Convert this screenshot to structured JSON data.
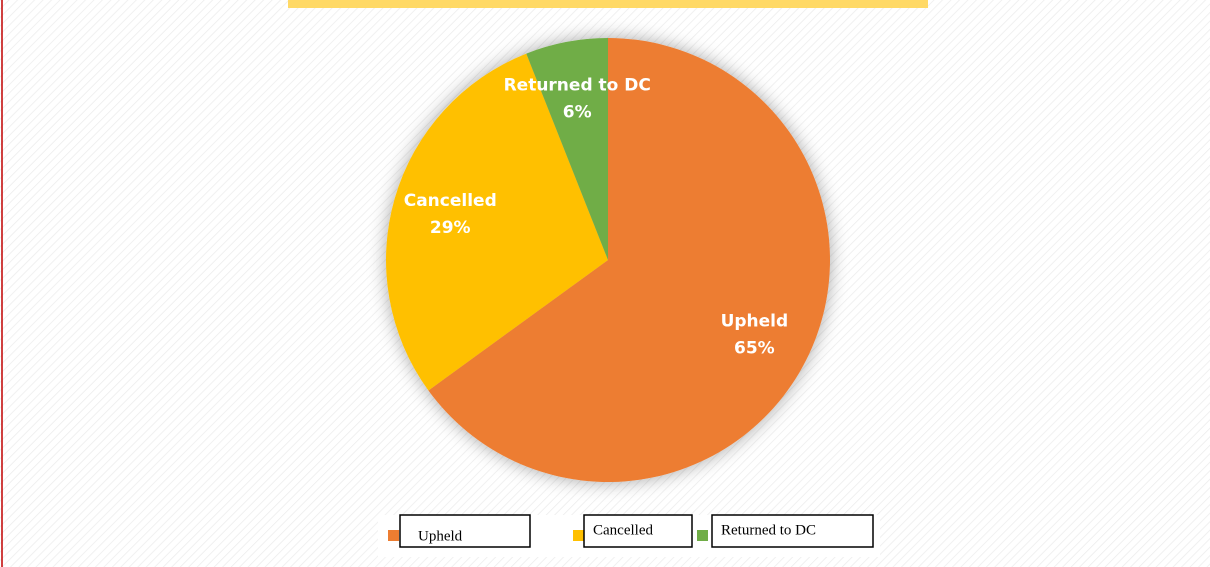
{
  "chart_data": {
    "type": "pie",
    "categories": [
      "Upheld",
      "Cancelled",
      "Returned to DC"
    ],
    "values": [
      65,
      29,
      6
    ],
    "value_labels": [
      "65%",
      "29%",
      "6%"
    ],
    "colors": [
      "#ed7d31",
      "#ffc000",
      "#70ad47"
    ],
    "legend": "bottom"
  }
}
